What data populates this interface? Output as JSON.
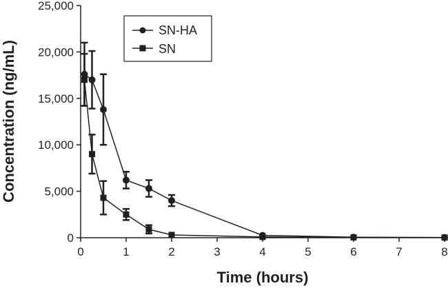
{
  "chart_data": {
    "type": "line",
    "xlabel": "Time (hours)",
    "ylabel": "Concentration (ng/mL)",
    "xlim": [
      0,
      8
    ],
    "ylim": [
      0,
      25000
    ],
    "x_ticks": [
      "0",
      "1",
      "2",
      "3",
      "4",
      "5",
      "6",
      "7",
      "8"
    ],
    "y_ticks": [
      "0",
      "5,000",
      "10,000",
      "15,000",
      "20,000",
      "25,000"
    ],
    "grid": false,
    "legend_position": "top-center",
    "series": [
      {
        "name": "SN-HA",
        "marker": "circle",
        "color": "#231f20",
        "points": [
          {
            "x": 0.0833,
            "y": 17600,
            "err": 3400
          },
          {
            "x": 0.25,
            "y": 17000,
            "err": 3100
          },
          {
            "x": 0.5,
            "y": 13800,
            "err": 3800
          },
          {
            "x": 1,
            "y": 6200,
            "err": 900
          },
          {
            "x": 1.5,
            "y": 5300,
            "err": 900
          },
          {
            "x": 2,
            "y": 4000,
            "err": 600
          },
          {
            "x": 4,
            "y": 250,
            "err": 0
          },
          {
            "x": 6,
            "y": 60,
            "err": 0
          },
          {
            "x": 8,
            "y": 30,
            "err": 0
          }
        ]
      },
      {
        "name": "SN",
        "marker": "square",
        "color": "#231f20",
        "points": [
          {
            "x": 0.0833,
            "y": 17000,
            "err": 2800
          },
          {
            "x": 0.25,
            "y": 9000,
            "err": 2100
          },
          {
            "x": 0.5,
            "y": 4300,
            "err": 1800
          },
          {
            "x": 1,
            "y": 2500,
            "err": 600
          },
          {
            "x": 1.5,
            "y": 900,
            "err": 450
          },
          {
            "x": 2,
            "y": 300,
            "err": 0
          },
          {
            "x": 4,
            "y": 80,
            "err": 0
          },
          {
            "x": 6,
            "y": 30,
            "err": 0
          },
          {
            "x": 8,
            "y": 15,
            "err": 0
          }
        ]
      }
    ]
  }
}
